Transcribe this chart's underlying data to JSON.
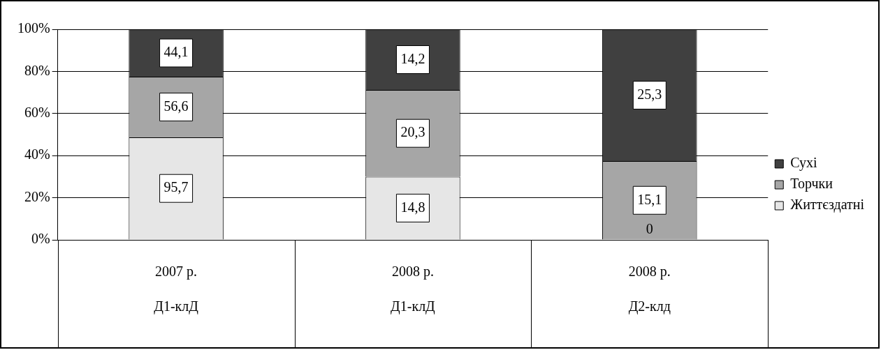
{
  "chart_data": {
    "type": "bar",
    "stacked": true,
    "categories": [
      "2007 р.\nД1-клД",
      "2008 р.\nД1-клД",
      "2008 р.\nД2-клд"
    ],
    "series": [
      {
        "name": "Життєздатні",
        "color": "#e6e6e6",
        "values": [
          48.7,
          30.0,
          0
        ]
      },
      {
        "name": "Торчки",
        "color": "#a6a6a6",
        "values": [
          28.8,
          41.2,
          37.4
        ]
      },
      {
        "name": "Сухі",
        "color": "#404040",
        "values": [
          22.5,
          28.8,
          62.6
        ]
      }
    ],
    "annotations": [
      "95,7",
      "56,6",
      "44,1",
      "14,8",
      "20,3",
      "14,2",
      "0",
      "15,1",
      "25,3"
    ],
    "ylim": [
      0,
      100
    ],
    "yticks": [
      {
        "value": 0,
        "label": "0%"
      },
      {
        "value": 20,
        "label": "20%"
      },
      {
        "value": 40,
        "label": "40%"
      },
      {
        "value": 60,
        "label": "60%"
      },
      {
        "value": 80,
        "label": "80%"
      },
      {
        "value": 100,
        "label": "100%"
      }
    ],
    "grid": "y",
    "legend": "right"
  }
}
